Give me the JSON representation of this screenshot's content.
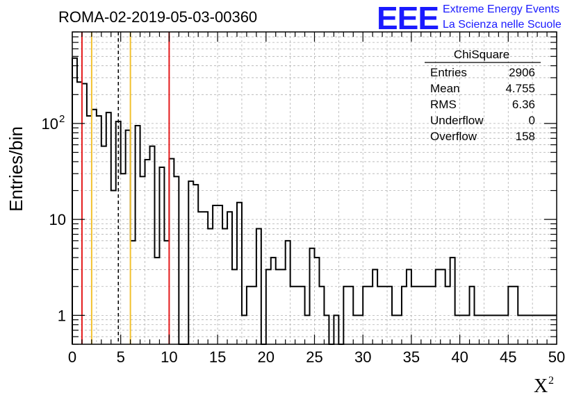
{
  "chart_data": {
    "type": "histogram",
    "title": "ROMA-02-2019-05-03-00360",
    "xlabel": "X",
    "xlabel_superscript": "2",
    "ylabel": "Entries/bin",
    "x_range": [
      0,
      50
    ],
    "y_range": [
      0.5,
      900
    ],
    "y_scale": "log",
    "grid": true,
    "x_ticks": [
      "0",
      "5",
      "10",
      "15",
      "20",
      "25",
      "30",
      "35",
      "40",
      "45",
      "50"
    ],
    "y_ticks": [
      {
        "value": 1,
        "label": "1"
      },
      {
        "value": 10,
        "label": "10"
      },
      {
        "value": 100,
        "label": "10",
        "exponent": "2"
      }
    ],
    "bin_width": 0.5,
    "bin_start": 0,
    "values": [
      480,
      270,
      260,
      120,
      140,
      120,
      58,
      130,
      20,
      105,
      30,
      85,
      6,
      95,
      28,
      42,
      58,
      4,
      35,
      6,
      43,
      28,
      0,
      0,
      25,
      23,
      12,
      12,
      8,
      14,
      14,
      8,
      12,
      3,
      15,
      1,
      2,
      2,
      8,
      0,
      3,
      4,
      3,
      3,
      6,
      2,
      2,
      2,
      1,
      5,
      4,
      2,
      1,
      0,
      1,
      0,
      2,
      2,
      1,
      1,
      2,
      2,
      3,
      2,
      2,
      2,
      1,
      1,
      2,
      3,
      2,
      2,
      2,
      2,
      2,
      3,
      3,
      2,
      4,
      1,
      1,
      1,
      2,
      1,
      1,
      1,
      1,
      1,
      1,
      1,
      2,
      2,
      1,
      1,
      1,
      1,
      1,
      1,
      1,
      1
    ],
    "vertical_lines": [
      {
        "x": 1,
        "color": "#e41a1c",
        "style": "solid"
      },
      {
        "x": 2,
        "color": "#f2c12e",
        "style": "solid"
      },
      {
        "x": 4.755,
        "color": "#000000",
        "style": "dashed"
      },
      {
        "x": 6,
        "color": "#f2c12e",
        "style": "solid"
      },
      {
        "x": 10,
        "color": "#e41a1c",
        "style": "solid"
      }
    ],
    "stats_box": {
      "title": "ChiSquare",
      "rows": [
        {
          "label": "Entries",
          "value": "2906"
        },
        {
          "label": "Mean",
          "value": "4.755"
        },
        {
          "label": "RMS",
          "value": "6.36"
        },
        {
          "label": "Underflow",
          "value": "0"
        },
        {
          "label": "Overflow",
          "value": "158"
        }
      ]
    }
  },
  "logo": {
    "mark": "EEE",
    "line1": "Extreme Energy Events",
    "line2": "La Scienza nelle Scuole",
    "color": "#1a1aff"
  }
}
